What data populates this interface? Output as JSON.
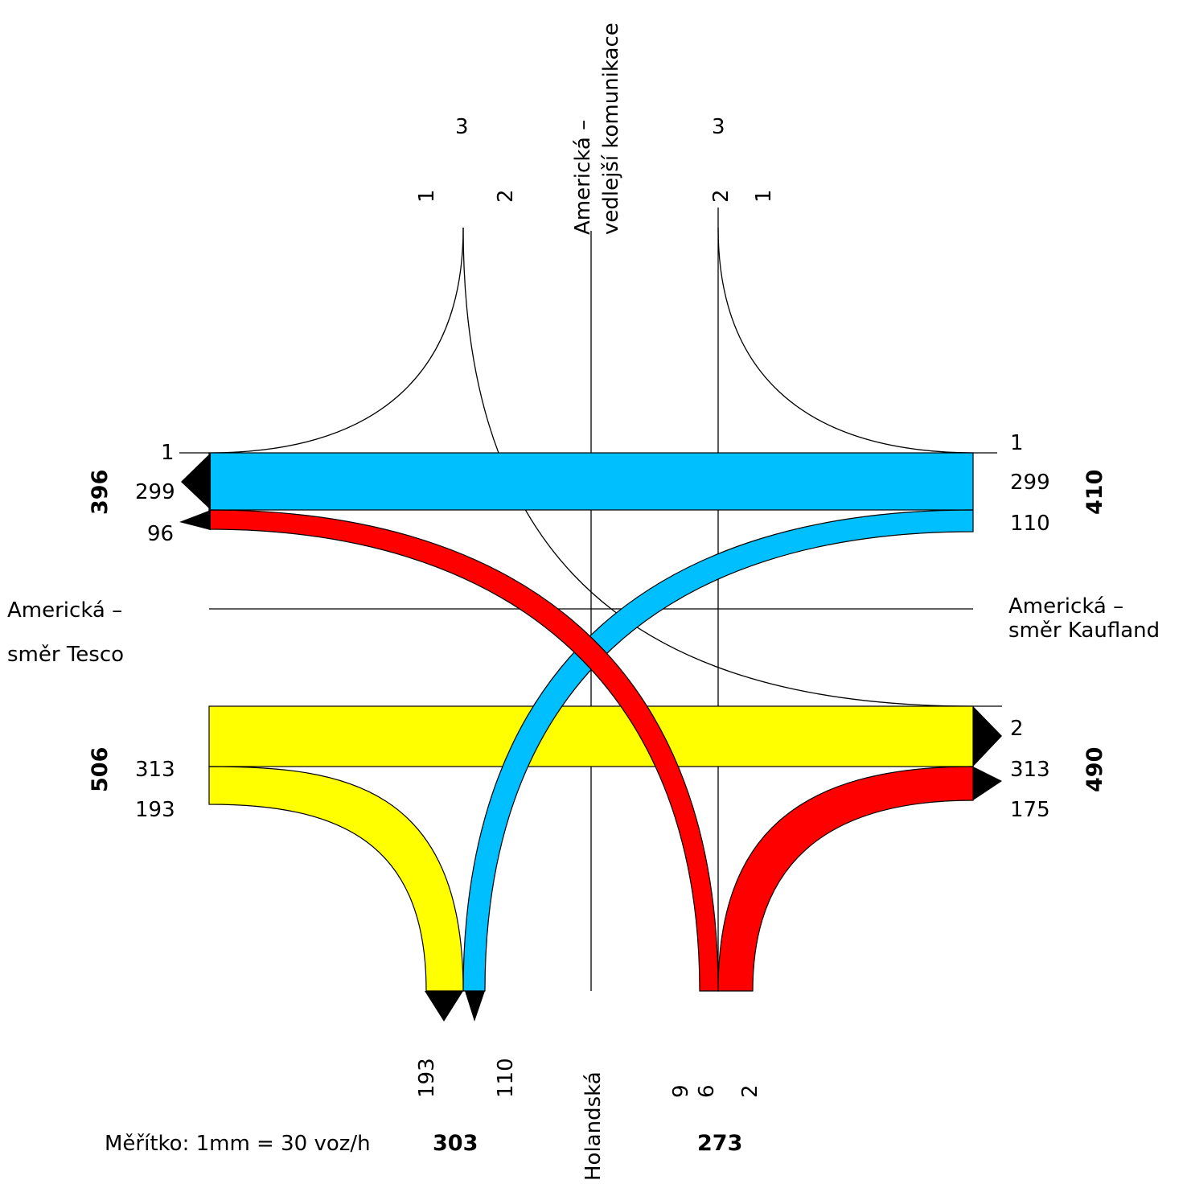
{
  "colors": {
    "blue": "#00bfff",
    "red": "#ff0000",
    "yellow": "#ffff00",
    "black": "#000000"
  },
  "roads": {
    "north": "Americká –\nvedlejší komunikace",
    "south": "Holandská",
    "west": "Americká –\nsměr Tesco",
    "east": "Americká –\nsměr Kaufland"
  },
  "west": {
    "upper": {
      "total": "396",
      "left_turn": "1",
      "straight": "299",
      "right_turn": "96"
    },
    "lower": {
      "total": "506",
      "straight": "313",
      "turn": "193"
    }
  },
  "east": {
    "upper": {
      "total": "410",
      "turn_1": "1",
      "straight": "299",
      "turn_2": "110"
    },
    "lower": {
      "total": "490",
      "turn_2": "2",
      "straight": "313",
      "turn": "175"
    }
  },
  "north": {
    "left_arm": {
      "lane_1": "1",
      "lane_3": "3",
      "lane_2": "2"
    },
    "right_arm": {
      "lane_2": "2",
      "lane_3": "3",
      "lane_1": "1"
    }
  },
  "south": {
    "left_arm": {
      "total": "303",
      "turn_a": "193",
      "turn_b": "110"
    },
    "right_arm": {
      "total": "273",
      "a": "9",
      "b": "6",
      "c": "2"
    }
  },
  "scale": "Měřítko: 1mm = 30 voz/h"
}
